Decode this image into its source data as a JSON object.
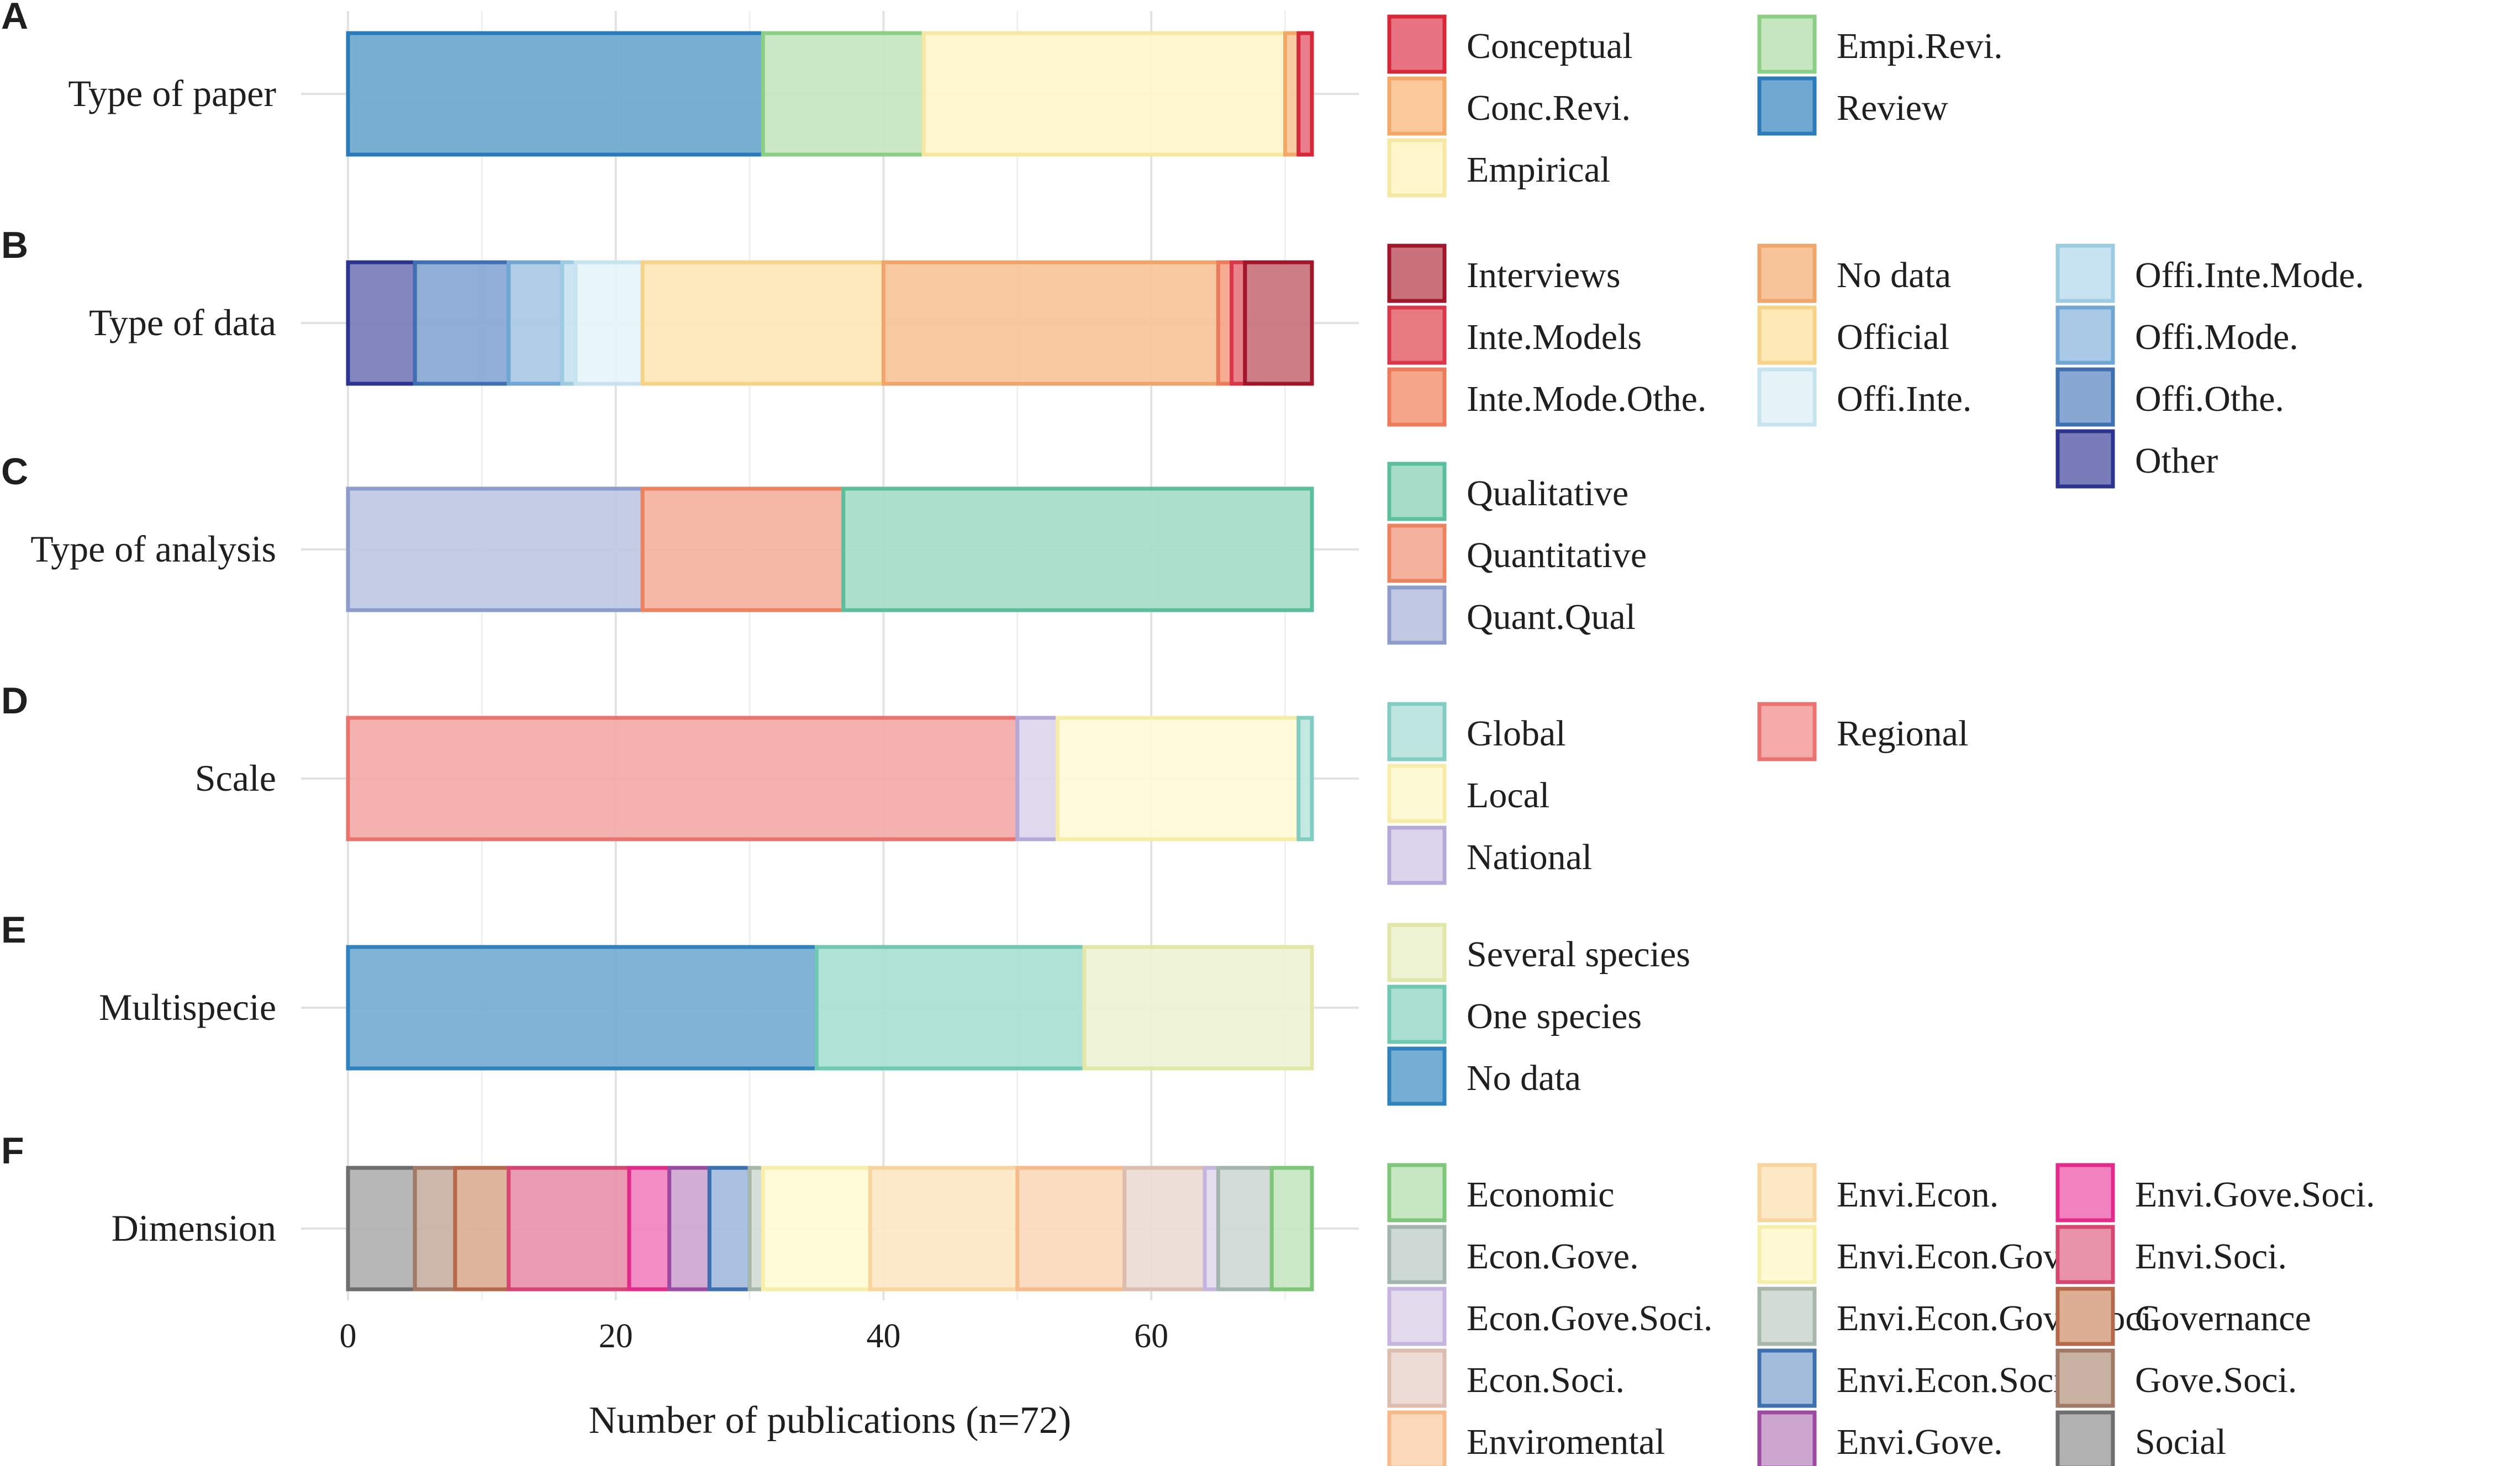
{
  "chart_data": {
    "type": "bar",
    "orientation": "horizontal",
    "stacked": true,
    "xlabel": "Number of publications (n=72)",
    "xlim": [
      0,
      72
    ],
    "xticks": [
      0,
      20,
      40,
      60
    ],
    "grid": true,
    "legend": "right",
    "panels": [
      {
        "letter": "A",
        "category": "Type of paper",
        "segments": [
          {
            "name": "Review",
            "value": 31,
            "color": "#6fa8d0",
            "stroke": "#2b7bba"
          },
          {
            "name": "Empi.Revi.",
            "value": 12,
            "color": "#c6e6c0",
            "stroke": "#8bcf86"
          },
          {
            "name": "Empirical",
            "value": 27,
            "color": "#fff6cc",
            "stroke": "#f6e7a3"
          },
          {
            "name": "Conc.Revi.",
            "value": 1,
            "color": "#f9c89b",
            "stroke": "#f2a866"
          },
          {
            "name": "Conceptual",
            "value": 1,
            "color": "#e77383",
            "stroke": "#d62839"
          }
        ],
        "legend_columns": [
          [
            "Conceptual",
            "Conc.Revi.",
            "Empirical"
          ],
          [
            "Empi.Revi.",
            "Review"
          ]
        ]
      },
      {
        "letter": "B",
        "category": "Type of data",
        "segments": [
          {
            "name": "Other",
            "value": 5,
            "color": "#7a7cba",
            "stroke": "#2c3490"
          },
          {
            "name": "Offi.Othe.",
            "value": 7,
            "color": "#88a8d3",
            "stroke": "#3e6fb0"
          },
          {
            "name": "Offi.Mode.",
            "value": 4,
            "color": "#a9c9e6",
            "stroke": "#6fa6d3"
          },
          {
            "name": "Offi.Inte.Mode.",
            "value": 1,
            "color": "#c7e3f1",
            "stroke": "#9ccbe2"
          },
          {
            "name": "Offi.Inte.",
            "value": 5,
            "color": "#e6f4f9",
            "stroke": "#c6e3ee"
          },
          {
            "name": "Official",
            "value": 18,
            "color": "#fde8b6",
            "stroke": "#f5d48a"
          },
          {
            "name": "No data",
            "value": 25,
            "color": "#f7c398",
            "stroke": "#f0a56b"
          },
          {
            "name": "Inte.Mode.Othe.",
            "value": 1,
            "color": "#f5a58a",
            "stroke": "#ec7b5b"
          },
          {
            "name": "Inte.Models",
            "value": 1,
            "color": "#e77a80",
            "stroke": "#d9384a"
          },
          {
            "name": "Interviews",
            "value": 5,
            "color": "#c9727c",
            "stroke": "#a1162b"
          }
        ],
        "legend_columns": [
          [
            "Interviews",
            "Inte.Models",
            "Inte.Mode.Othe."
          ],
          [
            "No data",
            "Official",
            "Offi.Inte."
          ],
          [
            "Offi.Inte.Mode.",
            "Offi.Mode.",
            "Offi.Othe.",
            "Other"
          ]
        ]
      },
      {
        "letter": "C",
        "category": "Type of analysis",
        "segments": [
          {
            "name": "Quant.Qual",
            "value": 22,
            "color": "#c0c8e3",
            "stroke": "#8e9ccb"
          },
          {
            "name": "Quantitative",
            "value": 15,
            "color": "#f4b29e",
            "stroke": "#ec8360"
          },
          {
            "name": "Qualitative",
            "value": 35,
            "color": "#a6ddc9",
            "stroke": "#5cbf9c"
          }
        ],
        "legend_columns": [
          [
            "Qualitative",
            "Quantitative",
            "Quant.Qual"
          ]
        ]
      },
      {
        "letter": "D",
        "category": "Scale",
        "segments": [
          {
            "name": "Regional",
            "value": 50,
            "color": "#f4aaa8",
            "stroke": "#e9736e"
          },
          {
            "name": "National",
            "value": 3,
            "color": "#dcd6ec",
            "stroke": "#b4aad7"
          },
          {
            "name": "Local",
            "value": 18,
            "color": "#fffad6",
            "stroke": "#f7eda9"
          },
          {
            "name": "Global",
            "value": 1,
            "color": "#bfe6e0",
            "stroke": "#82cdc1"
          }
        ],
        "legend_columns": [
          [
            "Global",
            "Local",
            "National"
          ],
          [
            "Regional"
          ]
        ]
      },
      {
        "letter": "E",
        "category": "Multispecie",
        "segments": [
          {
            "name": "No data",
            "value": 35,
            "color": "#75aed4",
            "stroke": "#2f82bd"
          },
          {
            "name": "One species",
            "value": 20,
            "color": "#a9e0d1",
            "stroke": "#6fc8b1"
          },
          {
            "name": "Several species",
            "value": 17,
            "color": "#eef3d3",
            "stroke": "#e1e7a8"
          }
        ],
        "legend_columns": [
          [
            "Several species",
            "One species",
            "No data"
          ]
        ]
      },
      {
        "letter": "F",
        "category": "Dimension",
        "segments": [
          {
            "name": "Social",
            "value": 5,
            "color": "#b1b1b1",
            "stroke": "#6e6e6e"
          },
          {
            "name": "Gove.Soci.",
            "value": 3,
            "color": "#c9b1a3",
            "stroke": "#a07a67"
          },
          {
            "name": "Governance",
            "value": 4,
            "color": "#dcae94",
            "stroke": "#b5694a"
          },
          {
            "name": "Envi.Soci.",
            "value": 9,
            "color": "#e993ab",
            "stroke": "#d64672"
          },
          {
            "name": "Envi.Gove.Soci.",
            "value": 3,
            "color": "#f282bf",
            "stroke": "#e22a8a"
          },
          {
            "name": "Envi.Gove",
            "value": 3,
            "color": "#cda6d0",
            "stroke": "#9d4aa3"
          },
          {
            "name": "Envi.Econ.Soci.",
            "value": 3,
            "color": "#a3bcdc",
            "stroke": "#3e6fb0"
          },
          {
            "name": "Envi.Econ.Gove.Soci.",
            "value": 1,
            "color": "#d2dcd4",
            "stroke": "#a7b8aa"
          },
          {
            "name": "Envi.Econ.Gove.",
            "value": 8,
            "color": "#fffad4",
            "stroke": "#f7eea9"
          },
          {
            "name": "Envi.Econ.",
            "value": 11,
            "color": "#fde8c5",
            "stroke": "#f7d59c"
          },
          {
            "name": "Enviromental",
            "value": 8,
            "color": "#fcd9bb",
            "stroke": "#f7bb8b"
          },
          {
            "name": "Econ.Soci.",
            "value": 6,
            "color": "#ecdcd5",
            "stroke": "#dcbdaf"
          },
          {
            "name": "Econ.Gove.Soci.",
            "value": 1,
            "color": "#e4daee",
            "stroke": "#c5b4dd"
          },
          {
            "name": "Econ.Gove.",
            "value": 4,
            "color": "#cfd9d5",
            "stroke": "#a2b6ad"
          },
          {
            "name": "Economic",
            "value": 3,
            "color": "#c7e6c2",
            "stroke": "#7ec67a"
          }
        ],
        "legend_columns": [
          [
            "Economic",
            "Econ.Gove.",
            "Econ.Gove.Soci.",
            "Econ.Soci.",
            "Enviromental"
          ],
          [
            "Envi.Econ.",
            "Envi.Econ.Gove.",
            "Envi.Econ.Gove.Soci.",
            "Envi.Econ.Soci.",
            "Envi.Gove."
          ],
          [
            "Envi.Gove.Soci.",
            "Envi.Soci.",
            "Governance",
            "Gove.Soci.",
            "Social"
          ]
        ]
      }
    ]
  }
}
